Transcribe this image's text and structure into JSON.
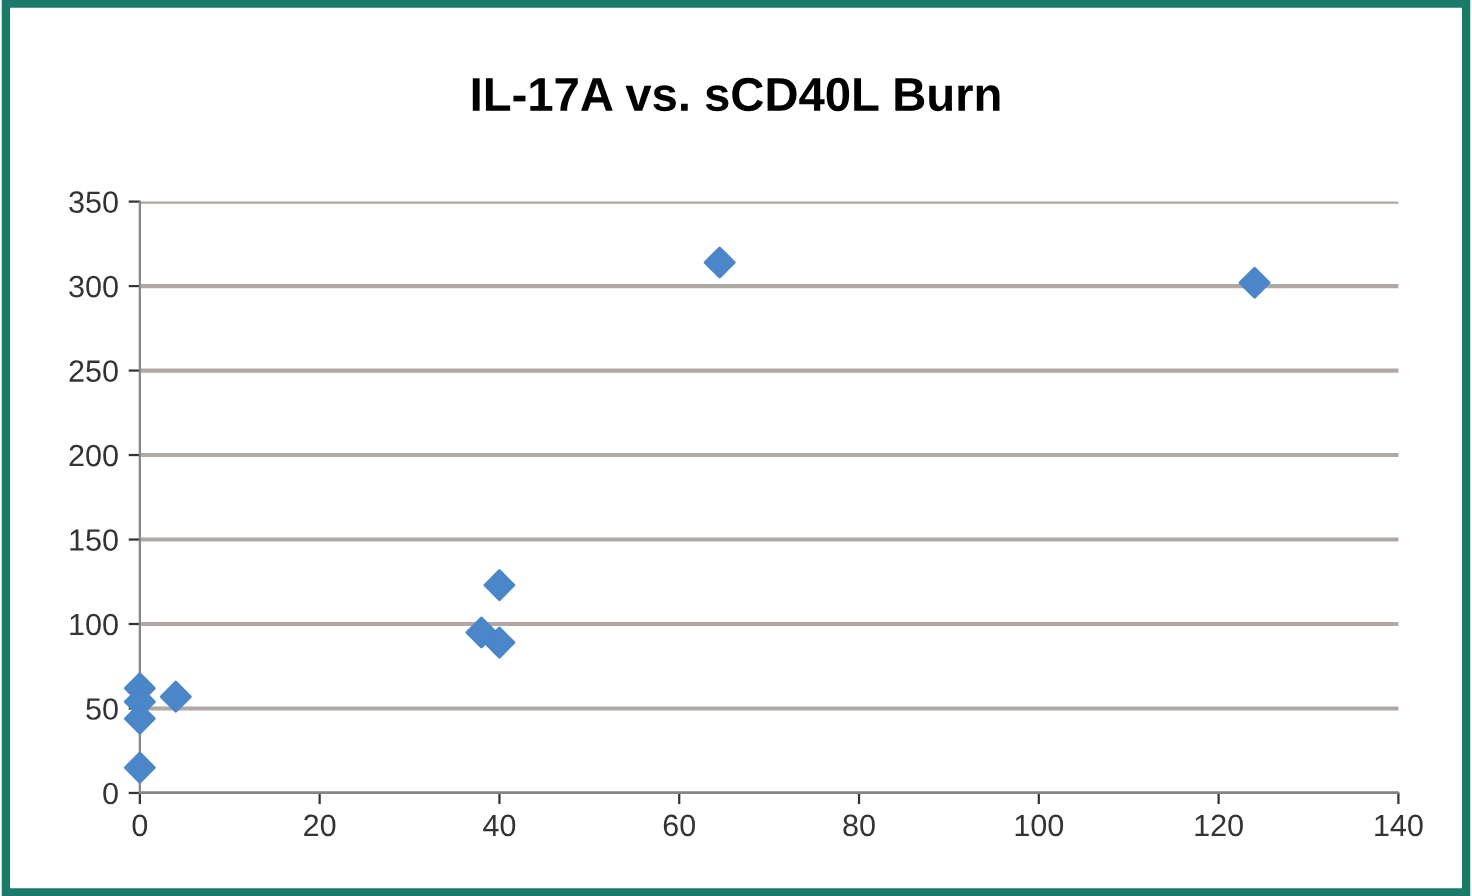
{
  "chart_data": {
    "type": "scatter",
    "title": "IL-17A vs. sCD40L Burn",
    "x": [
      0,
      0,
      0,
      0,
      4,
      38,
      40,
      40,
      64.5,
      124
    ],
    "values": [
      62,
      54,
      44,
      15,
      57,
      95,
      123,
      89,
      314,
      302
    ],
    "color": "#4a86c8",
    "marker": "diamond",
    "grid": "y",
    "xlim": [
      0,
      140
    ],
    "xticks": [
      0,
      20,
      40,
      60,
      80,
      100,
      120,
      140
    ],
    "ylim": [
      0,
      350
    ],
    "yticks": [
      0,
      50,
      100,
      150,
      200,
      250,
      300,
      350
    ]
  }
}
